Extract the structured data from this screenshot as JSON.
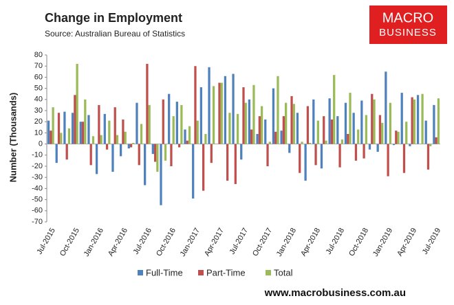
{
  "chart_data": {
    "type": "bar",
    "title": "Change in Employment",
    "subtitle": "Source: Australian Bureau of Statistics",
    "y_label": "Number (Thousands)",
    "logo": [
      "MACRO",
      "BUSINESS"
    ],
    "website": "www.macrobusiness.com.au",
    "categories": [
      "Jul-2015",
      null,
      null,
      "Oct-2015",
      null,
      null,
      "Jan-2016",
      null,
      null,
      "Apr-2016",
      null,
      null,
      "Jul-2016",
      null,
      null,
      "Oct-2016",
      null,
      null,
      "Jan-2017",
      null,
      null,
      "Apr-2017",
      null,
      null,
      "Jul-2017",
      null,
      null,
      "Oct-2017",
      null,
      null,
      "Jan-2018",
      null,
      null,
      "Apr-2018",
      null,
      null,
      "Jul-2018",
      null,
      null,
      "Oct-2018",
      null,
      null,
      "Jan-2019",
      null,
      null,
      "Apr-2019",
      null,
      null,
      "Jul-2019"
    ],
    "series": [
      {
        "name": "Full-Time",
        "color": "#4f81bd",
        "values": [
          21,
          -17,
          29,
          28,
          20,
          26,
          -27,
          27,
          -25,
          -11,
          -4,
          37,
          -37,
          -9,
          -55,
          45,
          38,
          13,
          -49,
          51,
          69,
          0,
          61,
          63,
          -14,
          40,
          9,
          22,
          50,
          12,
          -8,
          28,
          -33,
          40,
          -22,
          41,
          25,
          37,
          28,
          39,
          -5,
          -7,
          65,
          -1,
          46,
          -2,
          44,
          21,
          35
        ]
      },
      {
        "name": "Part-Time",
        "color": "#c0504d",
        "values": [
          12,
          28,
          -14,
          44,
          20,
          -19,
          35,
          -5,
          33,
          22,
          -3,
          -19,
          72,
          -16,
          40,
          -20,
          -3,
          3,
          70,
          -42,
          -17,
          55,
          -33,
          -36,
          51,
          13,
          25,
          -20,
          11,
          25,
          43,
          -26,
          34,
          -19,
          25,
          22,
          -21,
          9,
          -15,
          -13,
          45,
          26,
          -29,
          12,
          -26,
          42,
          0,
          -23,
          6
        ]
      },
      {
        "name": "Total",
        "color": "#9bbb59",
        "values": [
          33,
          10,
          14,
          72,
          40,
          7,
          8,
          21,
          8,
          11,
          1,
          18,
          35,
          -25,
          -15,
          25,
          35,
          16,
          21,
          9,
          52,
          55,
          28,
          27,
          37,
          53,
          34,
          2,
          61,
          37,
          36,
          2,
          1,
          21,
          3,
          62,
          4,
          46,
          13,
          26,
          40,
          19,
          37,
          11,
          20,
          40,
          45,
          -2,
          41
        ]
      }
    ],
    "ylim": [
      -70,
      80
    ],
    "yticks": [
      -70,
      -60,
      -50,
      -40,
      -30,
      -20,
      -10,
      0,
      10,
      20,
      30,
      40,
      50,
      60,
      70,
      80
    ],
    "grid": false,
    "legend": "bottom"
  }
}
